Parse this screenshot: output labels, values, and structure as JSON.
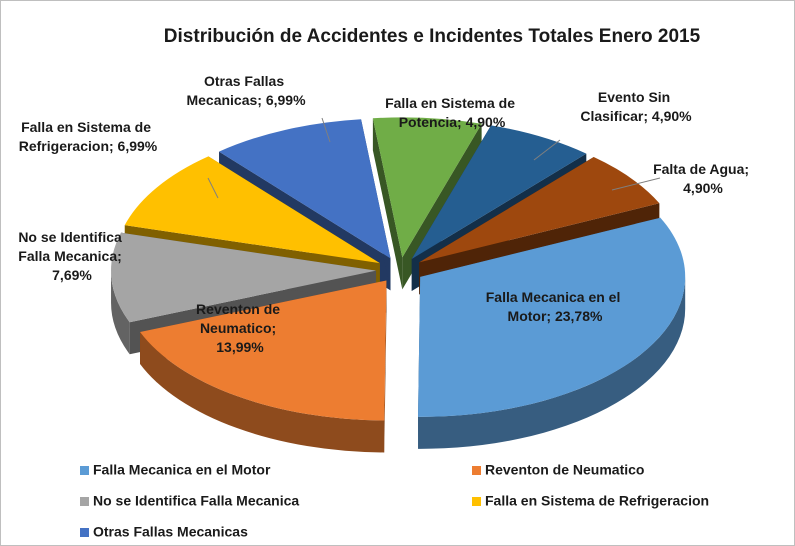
{
  "chart_data": {
    "type": "pie3d",
    "title": "Distribución de Accidentes e Incidentes Totales Enero 2015",
    "categories": [
      "Falla Mecanica en el Motor",
      "Reventon de Neumatico",
      "No se Identifica Falla Mecanica",
      "Falla en Sistema de Refrigeracion",
      "Otras Fallas Mecanicas",
      "Falla en Sistema de Potencia",
      "Evento Sin Clasificar",
      "Falta de Agua"
    ],
    "values": [
      23.78,
      13.99,
      7.69,
      6.99,
      6.99,
      4.9,
      4.9,
      4.9
    ],
    "value_labels": [
      "Falla Mecanica en el Motor; 23,78%",
      "Reventon de Neumatico; 13,99%",
      "No se Identifica Falla Mecanica; 7,69%",
      "Falla en Sistema de Refrigeracion; 6,99%",
      "Otras Fallas Mecanicas; 6,99%",
      "Falla en Sistema de Potencia; 4,90%",
      "Evento Sin Clasificar; 4,90%",
      "Falta de Agua; 4,90%"
    ],
    "colors": [
      "#5b9bd5",
      "#ed7d31",
      "#a5a5a5",
      "#ffc000",
      "#4472c4",
      "#70ad47",
      "#255e91",
      "#9e480e"
    ],
    "legend": "bottom"
  }
}
